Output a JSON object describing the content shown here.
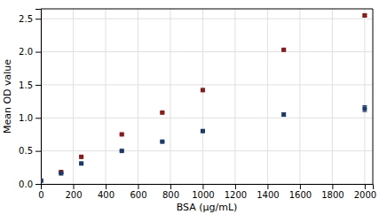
{
  "chart_data": {
    "type": "scatter",
    "xlabel": "BSA (µg/mL)",
    "ylabel": "Mean OD value",
    "xlim": [
      0,
      2050
    ],
    "ylim": [
      0,
      2.65
    ],
    "xticks": [
      0,
      200,
      400,
      600,
      800,
      1000,
      1200,
      1400,
      1600,
      1800,
      2000
    ],
    "yticks": [
      {
        "value": 0,
        "label": "0.0"
      },
      0.5,
      {
        "value": 1.0,
        "label": "1.0"
      },
      1.5,
      {
        "value": 2.0,
        "label": "2.0"
      },
      2.5
    ],
    "grid": true,
    "marker": "square",
    "series": [
      {
        "color": "#8b1a1a",
        "x": [
          0,
          125,
          250,
          500,
          750,
          1000,
          1500,
          2000
        ],
        "values": [
          0.05,
          0.18,
          0.41,
          0.75,
          1.08,
          1.42,
          2.03,
          2.55
        ],
        "yerr": [
          0.005,
          0.008,
          0.008,
          0.01,
          0.01,
          0.02,
          0.01,
          0.015
        ]
      },
      {
        "color": "#1a3a6b",
        "x": [
          0,
          125,
          250,
          500,
          750,
          1000,
          1500,
          2000
        ],
        "values": [
          0.05,
          0.16,
          0.31,
          0.5,
          0.64,
          0.8,
          1.05,
          1.14
        ],
        "yerr": [
          0.003,
          0.004,
          0.004,
          0.005,
          0.005,
          0.01,
          0.025,
          0.045
        ]
      }
    ]
  }
}
